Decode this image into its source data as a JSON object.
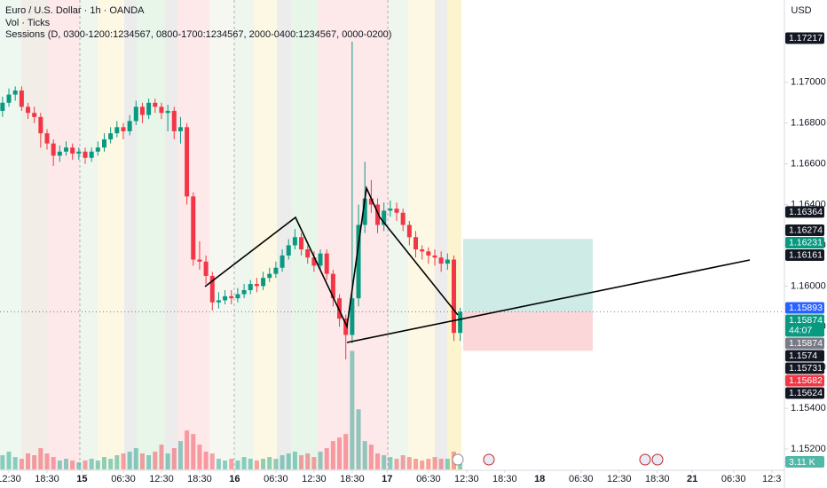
{
  "chart_data": {
    "type": "candlestick",
    "title": "Euro / U.S. Dollar · 1h · OANDA",
    "indicators": [
      "Vol · Ticks",
      "Sessions (D, 0300-1200:1234567, 0800-1700:1234567, 2000-0400:1234567, 0000-0200)"
    ],
    "currency": "USD",
    "up_color": "#089981",
    "down_color": "#f23645",
    "x": [
      -1,
      0,
      1,
      2,
      3,
      4,
      5,
      6,
      7,
      8,
      9,
      10,
      11,
      12,
      13,
      14,
      15,
      16,
      17,
      18,
      19,
      20,
      21,
      22,
      23,
      24,
      25,
      26,
      27,
      28,
      29,
      30,
      31,
      32,
      33,
      34,
      35,
      36,
      37,
      38,
      39,
      40,
      41,
      42,
      43,
      44,
      45,
      46,
      47,
      48,
      49,
      50,
      51,
      52,
      53,
      54,
      55,
      56,
      57,
      58,
      59,
      60,
      61,
      62,
      63,
      64,
      65,
      66,
      67,
      68,
      69,
      70,
      71
    ],
    "open": [
      1.1686,
      1.169,
      1.1694,
      1.1696,
      1.1688,
      1.1685,
      1.1683,
      1.1675,
      1.167,
      1.1664,
      1.1666,
      1.1668,
      1.1665,
      1.1666,
      1.1663,
      1.1666,
      1.1668,
      1.1672,
      1.1675,
      1.1678,
      1.1676,
      1.1681,
      1.1688,
      1.1684,
      1.169,
      1.1688,
      1.1685,
      1.1686,
      1.1676,
      1.1678,
      1.1644,
      1.1613,
      1.1612,
      1.1605,
      1.1592,
      1.1593,
      1.1595,
      1.1594,
      1.1596,
      1.1598,
      1.1601,
      1.16,
      1.1604,
      1.1606,
      1.1609,
      1.1615,
      1.162,
      1.1624,
      1.1618,
      1.1614,
      1.161,
      1.1616,
      1.1606,
      1.1594,
      1.1584,
      1.1576,
      1.1594,
      1.163,
      1.1643,
      1.164,
      1.163,
      1.1637,
      1.1638,
      1.1636,
      1.163,
      1.1624,
      1.1618,
      1.1617,
      1.1615,
      1.1614,
      1.1611,
      1.1613,
      1.1577
    ],
    "high": [
      1.1693,
      1.1697,
      1.1698,
      1.1698,
      1.169,
      1.1688,
      1.1685,
      1.1677,
      1.1672,
      1.1669,
      1.1671,
      1.167,
      1.1668,
      1.1668,
      1.1668,
      1.1671,
      1.1675,
      1.1678,
      1.1681,
      1.168,
      1.1684,
      1.1691,
      1.169,
      1.1692,
      1.1692,
      1.169,
      1.1689,
      1.1688,
      1.1683,
      1.168,
      1.1646,
      1.1622,
      1.1615,
      1.1607,
      1.1597,
      1.1598,
      1.1598,
      1.1599,
      1.1601,
      1.1603,
      1.1604,
      1.1607,
      1.1609,
      1.1612,
      1.1618,
      1.1623,
      1.1628,
      1.1626,
      1.162,
      1.1617,
      1.1618,
      1.1618,
      1.1608,
      1.1596,
      1.1586,
      1.172,
      1.164,
      1.1661,
      1.1652,
      1.1643,
      1.1641,
      1.1642,
      1.1641,
      1.1638,
      1.1632,
      1.1627,
      1.162,
      1.1619,
      1.1618,
      1.1617,
      1.1616,
      1.1615,
      1.15893
    ],
    "low": [
      1.1683,
      1.1688,
      1.1691,
      1.1686,
      1.1682,
      1.168,
      1.1668,
      1.1667,
      1.1659,
      1.1661,
      1.1664,
      1.1662,
      1.1662,
      1.166,
      1.1661,
      1.1664,
      1.1666,
      1.167,
      1.1673,
      1.1672,
      1.1674,
      1.1679,
      1.168,
      1.1682,
      1.1685,
      1.1682,
      1.1676,
      1.1672,
      1.167,
      1.164,
      1.161,
      1.1608,
      1.1601,
      1.1588,
      1.1589,
      1.1591,
      1.1591,
      1.1592,
      1.1594,
      1.1596,
      1.1597,
      1.1598,
      1.1602,
      1.1604,
      1.1607,
      1.1613,
      1.1618,
      1.1615,
      1.1611,
      1.1607,
      1.1608,
      1.1603,
      1.159,
      1.158,
      1.1564,
      1.1572,
      1.159,
      1.1626,
      1.1636,
      1.1626,
      1.1627,
      1.1634,
      1.1632,
      1.1627,
      1.162,
      1.1614,
      1.1613,
      1.1611,
      1.161,
      1.1607,
      1.1608,
      1.1573,
      1.1573
    ],
    "close": [
      1.169,
      1.1694,
      1.1696,
      1.1688,
      1.1685,
      1.1683,
      1.1675,
      1.167,
      1.1664,
      1.1666,
      1.1668,
      1.1665,
      1.1666,
      1.1663,
      1.1666,
      1.1668,
      1.1672,
      1.1675,
      1.1678,
      1.1676,
      1.1681,
      1.1688,
      1.1684,
      1.169,
      1.1688,
      1.1685,
      1.1686,
      1.1676,
      1.1678,
      1.1644,
      1.1613,
      1.1612,
      1.1605,
      1.1592,
      1.1593,
      1.1595,
      1.1594,
      1.1596,
      1.1598,
      1.1601,
      1.16,
      1.1604,
      1.1606,
      1.1609,
      1.1615,
      1.162,
      1.1624,
      1.1618,
      1.1614,
      1.161,
      1.1616,
      1.1606,
      1.1594,
      1.1584,
      1.1576,
      1.1594,
      1.163,
      1.1643,
      1.164,
      1.163,
      1.1637,
      1.1638,
      1.1636,
      1.163,
      1.1624,
      1.1618,
      1.1617,
      1.1615,
      1.1614,
      1.1611,
      1.1613,
      1.1577,
      1.15874
    ],
    "volume": [
      8000,
      10000,
      7000,
      6000,
      9000,
      8000,
      12000,
      9000,
      7000,
      5000,
      6000,
      5000,
      4000,
      5000,
      6000,
      5000,
      7000,
      6000,
      8000,
      9000,
      10000,
      12000,
      9000,
      8000,
      10000,
      14000,
      9000,
      12000,
      16000,
      22000,
      20000,
      14000,
      10000,
      9000,
      6000,
      5000,
      6000,
      5000,
      7000,
      6000,
      5000,
      6000,
      7000,
      6000,
      8000,
      9000,
      10000,
      8000,
      9000,
      7000,
      10000,
      12000,
      16000,
      18000,
      20000,
      67000,
      34000,
      16000,
      14000,
      9000,
      8000,
      7000,
      6000,
      8000,
      7000,
      6000,
      5000,
      6000,
      7000,
      6000,
      6000,
      10000,
      3110
    ],
    "volume_last_label": "3.11 K",
    "volume_ylim": [
      0,
      265000
    ],
    "countdown": "44:07",
    "xlim": [
      -1.4,
      122
    ],
    "xticks": [
      {
        "value": 0,
        "label": "12:30"
      },
      {
        "value": 6,
        "label": "18:30"
      },
      {
        "value": 11.5,
        "label": "15"
      },
      {
        "value": 18,
        "label": "06:30"
      },
      {
        "value": 24,
        "label": "12:30"
      },
      {
        "value": 30,
        "label": "18:30"
      },
      {
        "value": 35.5,
        "label": "16"
      },
      {
        "value": 42,
        "label": "06:30"
      },
      {
        "value": 48,
        "label": "12:30"
      },
      {
        "value": 54,
        "label": "18:30"
      },
      {
        "value": 59.5,
        "label": "17"
      },
      {
        "value": 66,
        "label": "06:30"
      },
      {
        "value": 72,
        "label": "12:30"
      },
      {
        "value": 78,
        "label": "18:30"
      },
      {
        "value": 83.5,
        "label": "18"
      },
      {
        "value": 90,
        "label": "06:30"
      },
      {
        "value": 96,
        "label": "12:30"
      },
      {
        "value": 102,
        "label": "18:30"
      },
      {
        "value": 107.5,
        "label": "21"
      },
      {
        "value": 114,
        "label": "06:30"
      },
      {
        "value": 120,
        "label": "12:3"
      }
    ],
    "ylim": [
      1.151,
      1.174
    ],
    "yticks": [
      {
        "value": 1.152,
        "label": "1.15200"
      },
      {
        "value": 1.154,
        "label": "1.15400"
      },
      {
        "value": 1.156,
        "label": "1.15600"
      },
      {
        "value": 1.158,
        "label": "1.15800"
      },
      {
        "value": 1.16,
        "label": "1.16000"
      },
      {
        "value": 1.162,
        "label": "1.16200"
      },
      {
        "value": 1.164,
        "label": "1.16400"
      },
      {
        "value": 1.166,
        "label": "1.16600"
      },
      {
        "value": 1.168,
        "label": "1.16800"
      },
      {
        "value": 1.17,
        "label": "1.17000"
      }
    ],
    "position": {
      "target": 1.16231,
      "entry": 1.15874,
      "stop": 1.15682,
      "target_color": "#089981",
      "entry_color": "#787b86",
      "stop_color": "#f23645"
    },
    "axis_labels": [
      1.17217,
      1.16364,
      1.16274,
      1.16161,
      1.15893,
      1.1574,
      1.15731,
      1.15624
    ],
    "axis_label_colors": [
      "#131722",
      "#131722",
      "#131722",
      "#131722",
      "#2962ff",
      "#131722",
      "#131722",
      "#131722"
    ]
  }
}
